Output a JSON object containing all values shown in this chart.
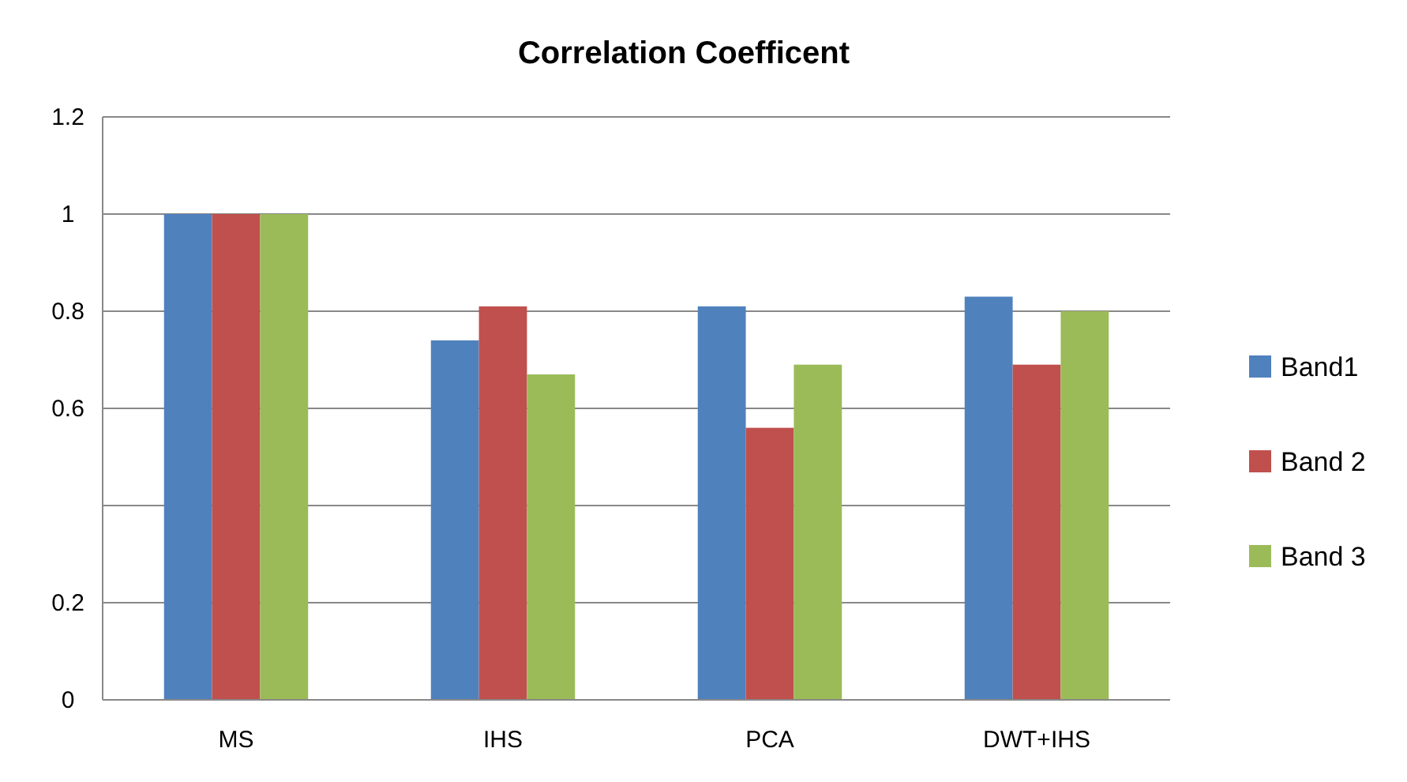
{
  "chart_data": {
    "type": "bar",
    "title": "Correlation Coefficent",
    "categories": [
      "MS",
      "IHS",
      "PCA",
      "DWT+IHS"
    ],
    "series": [
      {
        "name": "Band1",
        "color": "#4f81bd",
        "values": [
          1,
          0.74,
          0.81,
          0.83
        ]
      },
      {
        "name": "Band 2",
        "color": "#c0504d",
        "values": [
          1,
          0.81,
          0.56,
          0.69
        ]
      },
      {
        "name": "Band 3",
        "color": "#9bbb59",
        "values": [
          1,
          0.67,
          0.69,
          0.8
        ]
      }
    ],
    "ylim": [
      0,
      1.2
    ],
    "yticks": [
      0,
      0.2,
      {
        "value": 0.4,
        "label": null
      },
      0.6,
      0.8,
      1,
      1.2
    ],
    "grid": "y",
    "legend": "right"
  }
}
